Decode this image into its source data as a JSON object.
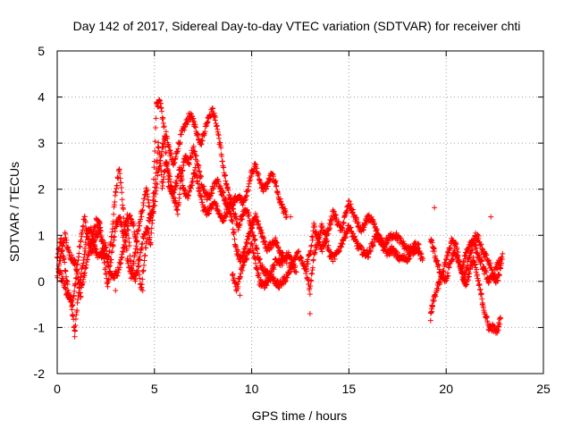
{
  "chart_data": {
    "type": "scatter",
    "title": "Day 142 of 2017, Sidereal Day-to-day VTEC variation (SDTVAR) for receiver chti",
    "xlabel": "GPS time / hours",
    "ylabel": "SDTVAR / TECUs",
    "xlim": [
      0,
      25
    ],
    "ylim": [
      -2,
      5
    ],
    "xticks": [
      0,
      5,
      10,
      15,
      20,
      25
    ],
    "yticks": [
      -2,
      -1,
      0,
      1,
      2,
      3,
      4,
      5
    ],
    "grid": true,
    "marker": "+",
    "color": "#ff0000",
    "series": [
      {
        "name": "track-a",
        "points": [
          [
            0.0,
            0.5
          ],
          [
            0.2,
            0.9
          ],
          [
            0.4,
            0.3
          ],
          [
            0.6,
            -0.3
          ],
          [
            0.8,
            -0.5
          ],
          [
            1.0,
            0.2
          ],
          [
            1.2,
            0.9
          ],
          [
            1.4,
            1.4
          ],
          [
            1.6,
            0.9
          ],
          [
            1.8,
            0.6
          ],
          [
            2.0,
            1.0
          ],
          [
            2.2,
            1.1
          ],
          [
            2.4,
            0.7
          ],
          [
            2.6,
            0.4
          ],
          [
            2.8,
            1.0
          ],
          [
            3.0,
            1.9
          ],
          [
            3.2,
            2.5
          ],
          [
            3.4,
            1.5
          ],
          [
            3.6,
            0.5
          ],
          [
            3.8,
            0.1
          ],
          [
            4.0,
            0.6
          ],
          [
            4.2,
            1.2
          ],
          [
            4.4,
            1.6
          ],
          [
            4.6,
            2.0
          ],
          [
            4.8,
            1.4
          ],
          [
            5.0,
            1.6
          ],
          [
            5.2,
            2.4
          ],
          [
            5.4,
            2.9
          ],
          [
            5.6,
            3.2
          ],
          [
            5.8,
            2.8
          ],
          [
            6.0,
            2.5
          ],
          [
            6.2,
            2.9
          ],
          [
            6.4,
            3.2
          ],
          [
            6.6,
            3.4
          ],
          [
            6.8,
            3.6
          ],
          [
            7.0,
            3.5
          ],
          [
            7.2,
            3.2
          ],
          [
            7.4,
            3.0
          ],
          [
            7.6,
            3.3
          ],
          [
            7.8,
            3.6
          ],
          [
            8.0,
            3.7
          ],
          [
            8.2,
            3.4
          ],
          [
            8.4,
            2.9
          ],
          [
            8.6,
            2.3
          ],
          [
            8.8,
            1.9
          ],
          [
            9.0,
            1.7
          ],
          [
            9.2,
            1.8
          ],
          [
            9.4,
            1.8
          ],
          [
            9.6,
            1.7
          ],
          [
            9.8,
            2.0
          ],
          [
            10.0,
            2.4
          ],
          [
            10.2,
            2.5
          ],
          [
            10.4,
            2.2
          ],
          [
            10.6,
            2.0
          ],
          [
            10.8,
            2.1
          ],
          [
            11.0,
            2.3
          ],
          [
            11.2,
            2.2
          ],
          [
            11.4,
            1.8
          ],
          [
            11.6,
            1.6
          ],
          [
            11.8,
            1.4
          ]
        ]
      },
      {
        "name": "track-b",
        "points": [
          [
            0.1,
            0.2
          ],
          [
            0.3,
            0.0
          ],
          [
            0.5,
            -0.3
          ],
          [
            0.7,
            -0.4
          ],
          [
            0.9,
            -1.1
          ],
          [
            1.1,
            -0.2
          ],
          [
            1.3,
            0.3
          ],
          [
            1.5,
            0.9
          ],
          [
            1.7,
            1.2
          ],
          [
            1.9,
            0.8
          ],
          [
            2.1,
            0.5
          ],
          [
            2.3,
            0.6
          ],
          [
            2.5,
            0.8
          ],
          [
            2.7,
            0.2
          ],
          [
            2.9,
            0.1
          ],
          [
            3.1,
            0.2
          ],
          [
            3.3,
            0.5
          ],
          [
            3.5,
            0.9
          ],
          [
            3.7,
            1.4
          ],
          [
            3.9,
            1.3
          ],
          [
            4.1,
            0.8
          ],
          [
            4.3,
            -0.2
          ],
          [
            4.5,
            0.5
          ],
          [
            4.7,
            1.3
          ],
          [
            4.9,
            1.5
          ],
          [
            5.1,
            3.8
          ],
          [
            5.3,
            3.9
          ],
          [
            5.5,
            3.3
          ],
          [
            5.7,
            2.2
          ],
          [
            5.9,
            1.9
          ],
          [
            6.1,
            2.1
          ],
          [
            6.3,
            2.4
          ],
          [
            6.5,
            2.0
          ],
          [
            6.7,
            1.8
          ],
          [
            6.9,
            2.1
          ],
          [
            7.1,
            2.4
          ],
          [
            7.3,
            2.0
          ],
          [
            7.5,
            1.6
          ],
          [
            7.7,
            1.5
          ],
          [
            7.9,
            1.6
          ],
          [
            8.1,
            1.7
          ],
          [
            8.3,
            1.5
          ],
          [
            8.5,
            1.3
          ],
          [
            8.7,
            1.5
          ],
          [
            8.9,
            1.7
          ],
          [
            9.1,
            1.5
          ],
          [
            9.3,
            1.2
          ],
          [
            9.5,
            1.4
          ],
          [
            9.7,
            1.6
          ],
          [
            9.9,
            1.3
          ],
          [
            10.1,
            1.0
          ],
          [
            10.3,
            0.6
          ],
          [
            10.5,
            0.3
          ],
          [
            10.7,
            0.2
          ],
          [
            10.9,
            0.1
          ],
          [
            11.1,
            0.3
          ],
          [
            11.3,
            0.5
          ],
          [
            11.5,
            0.4
          ],
          [
            11.7,
            0.5
          ],
          [
            11.9,
            0.6
          ],
          [
            12.1,
            0.4
          ],
          [
            12.3,
            0.2
          ]
        ]
      },
      {
        "name": "track-c",
        "points": [
          [
            0.0,
            0.1
          ],
          [
            0.2,
            0.6
          ],
          [
            0.4,
            1.0
          ],
          [
            0.6,
            0.6
          ],
          [
            0.8,
            0.5
          ],
          [
            1.0,
            0.3
          ],
          [
            1.2,
            -0.3
          ],
          [
            1.4,
            0.2
          ],
          [
            1.6,
            0.6
          ],
          [
            1.8,
            0.9
          ],
          [
            2.0,
            1.3
          ],
          [
            2.2,
            1.2
          ],
          [
            2.4,
            0.5
          ],
          [
            2.6,
            -0.1
          ],
          [
            2.8,
            0.6
          ],
          [
            3.0,
            1.2
          ],
          [
            3.2,
            1.4
          ],
          [
            3.4,
            1.0
          ],
          [
            3.6,
            1.4
          ],
          [
            3.8,
            0.3
          ],
          [
            4.0,
            0.0
          ],
          [
            4.2,
            0.4
          ],
          [
            4.4,
            0.9
          ],
          [
            4.6,
            1.2
          ],
          [
            4.8,
            0.8
          ],
          [
            5.0,
            1.9
          ],
          [
            5.2,
            3.0
          ],
          [
            5.4,
            2.1
          ],
          [
            5.6,
            2.6
          ],
          [
            5.8,
            2.2
          ],
          [
            6.0,
            1.8
          ],
          [
            6.2,
            1.5
          ],
          [
            6.4,
            2.4
          ],
          [
            6.6,
            2.7
          ],
          [
            6.8,
            2.6
          ],
          [
            7.0,
            2.9
          ],
          [
            7.2,
            2.6
          ],
          [
            7.4,
            2.2
          ],
          [
            7.6,
            1.9
          ],
          [
            7.8,
            1.8
          ],
          [
            8.0,
            2.0
          ],
          [
            8.2,
            2.2
          ],
          [
            8.4,
            2.0
          ],
          [
            8.6,
            1.8
          ],
          [
            8.8,
            1.6
          ],
          [
            9.0,
            1.3
          ],
          [
            9.2,
            0.7
          ],
          [
            9.4,
            0.5
          ],
          [
            9.6,
            0.6
          ],
          [
            9.8,
            0.9
          ],
          [
            10.0,
            1.2
          ],
          [
            10.2,
            1.4
          ],
          [
            10.4,
            1.2
          ],
          [
            10.6,
            0.9
          ],
          [
            10.8,
            0.7
          ],
          [
            11.0,
            0.8
          ],
          [
            11.2,
            0.9
          ],
          [
            11.4,
            0.7
          ],
          [
            11.6,
            0.6
          ],
          [
            11.8,
            0.4
          ]
        ]
      },
      {
        "name": "track-d",
        "points": [
          [
            9.0,
            0.2
          ],
          [
            9.2,
            -0.2
          ],
          [
            9.4,
            0.1
          ],
          [
            9.6,
            0.4
          ],
          [
            9.8,
            0.6
          ],
          [
            10.0,
            0.8
          ],
          [
            10.2,
            0.4
          ],
          [
            10.4,
            0.0
          ],
          [
            10.6,
            -0.1
          ],
          [
            10.8,
            0.0
          ],
          [
            11.0,
            0.1
          ],
          [
            11.2,
            0.0
          ],
          [
            11.4,
            -0.1
          ],
          [
            11.6,
            0.0
          ],
          [
            11.8,
            0.1
          ],
          [
            12.0,
            0.3
          ],
          [
            12.2,
            0.5
          ],
          [
            12.4,
            0.6
          ],
          [
            12.6,
            0.4
          ],
          [
            12.8,
            0.2
          ],
          [
            13.0,
            -0.2
          ],
          [
            13.2,
            0.6
          ],
          [
            13.4,
            0.9
          ],
          [
            13.6,
            1.2
          ],
          [
            13.8,
            1.0
          ],
          [
            14.0,
            0.6
          ],
          [
            14.2,
            0.5
          ],
          [
            14.4,
            0.6
          ],
          [
            14.6,
            0.8
          ],
          [
            14.8,
            1.0
          ],
          [
            15.0,
            1.2
          ],
          [
            15.2,
            1.0
          ],
          [
            15.4,
            0.8
          ],
          [
            15.6,
            0.7
          ],
          [
            15.8,
            0.6
          ],
          [
            16.0,
            0.6
          ],
          [
            16.2,
            0.8
          ],
          [
            16.4,
            1.0
          ],
          [
            16.6,
            0.9
          ],
          [
            16.8,
            0.7
          ],
          [
            17.0,
            0.6
          ],
          [
            17.2,
            0.7
          ],
          [
            17.4,
            0.6
          ],
          [
            17.6,
            0.5
          ],
          [
            17.8,
            0.5
          ],
          [
            18.0,
            0.5
          ],
          [
            18.2,
            0.6
          ],
          [
            18.4,
            0.7
          ],
          [
            18.6,
            0.8
          ]
        ]
      },
      {
        "name": "track-e",
        "points": [
          [
            12.8,
            0.3
          ],
          [
            13.0,
            0.6
          ],
          [
            13.2,
            1.2
          ],
          [
            13.4,
            0.9
          ],
          [
            13.6,
            0.7
          ],
          [
            13.8,
            0.9
          ],
          [
            14.0,
            1.2
          ],
          [
            14.2,
            1.5
          ],
          [
            14.4,
            1.3
          ],
          [
            14.6,
            1.1
          ],
          [
            14.8,
            1.4
          ],
          [
            15.0,
            1.7
          ],
          [
            15.2,
            1.5
          ],
          [
            15.4,
            1.3
          ],
          [
            15.6,
            1.1
          ],
          [
            15.8,
            1.2
          ],
          [
            16.0,
            1.4
          ],
          [
            16.2,
            1.3
          ],
          [
            16.4,
            1.1
          ],
          [
            16.6,
            0.9
          ],
          [
            16.8,
            0.8
          ],
          [
            17.0,
            0.9
          ],
          [
            17.2,
            1.0
          ],
          [
            17.4,
            1.0
          ],
          [
            17.6,
            0.9
          ],
          [
            17.8,
            0.8
          ],
          [
            18.0,
            0.7
          ],
          [
            18.2,
            0.7
          ],
          [
            18.4,
            0.8
          ],
          [
            18.6,
            0.6
          ],
          [
            18.8,
            0.5
          ]
        ]
      },
      {
        "name": "track-f",
        "points": [
          [
            19.2,
            0.9
          ],
          [
            19.4,
            0.6
          ],
          [
            19.6,
            0.3
          ],
          [
            19.8,
            0.1
          ],
          [
            20.0,
            0.0
          ],
          [
            20.2,
            0.4
          ],
          [
            20.4,
            0.6
          ],
          [
            20.6,
            0.5
          ],
          [
            20.8,
            0.2
          ],
          [
            21.0,
            0.6
          ],
          [
            21.2,
            0.8
          ],
          [
            21.4,
            0.9
          ],
          [
            21.6,
            0.6
          ],
          [
            21.8,
            0.4
          ],
          [
            22.0,
            0.2
          ],
          [
            22.2,
            0.0
          ],
          [
            22.4,
            0.1
          ],
          [
            22.6,
            0.3
          ],
          [
            22.8,
            0.5
          ]
        ]
      },
      {
        "name": "track-g",
        "points": [
          [
            19.2,
            -0.8
          ],
          [
            19.3,
            -0.5
          ],
          [
            19.5,
            -0.2
          ],
          [
            19.7,
            0.0
          ],
          [
            19.9,
            0.3
          ],
          [
            20.1,
            0.6
          ],
          [
            20.3,
            0.9
          ],
          [
            20.5,
            0.8
          ],
          [
            20.7,
            0.4
          ],
          [
            20.9,
            0.0
          ],
          [
            21.1,
            0.4
          ],
          [
            21.3,
            0.7
          ],
          [
            21.5,
            1.0
          ],
          [
            21.7,
            0.9
          ],
          [
            21.9,
            0.6
          ],
          [
            22.1,
            0.5
          ],
          [
            22.3,
            0.3
          ],
          [
            22.5,
            0.0
          ],
          [
            22.7,
            0.1
          ],
          [
            22.9,
            0.6
          ]
        ]
      },
      {
        "name": "track-h",
        "points": [
          [
            20.8,
            0.2
          ],
          [
            21.0,
            -0.1
          ],
          [
            21.2,
            0.2
          ],
          [
            21.4,
            0.5
          ],
          [
            21.6,
            0.1
          ],
          [
            21.8,
            -0.3
          ],
          [
            22.0,
            -0.7
          ],
          [
            22.2,
            -1.0
          ],
          [
            22.4,
            -1.0
          ],
          [
            22.6,
            -1.1
          ],
          [
            22.8,
            -0.8
          ]
        ]
      }
    ],
    "outliers": [
      [
        19.4,
        1.6
      ],
      [
        4.4,
        -0.2
      ],
      [
        0.9,
        -1.2
      ],
      [
        3.0,
        -0.2
      ],
      [
        13.0,
        -0.7
      ],
      [
        9.4,
        -0.3
      ],
      [
        12.0,
        1.4
      ],
      [
        22.3,
        1.4
      ]
    ]
  }
}
